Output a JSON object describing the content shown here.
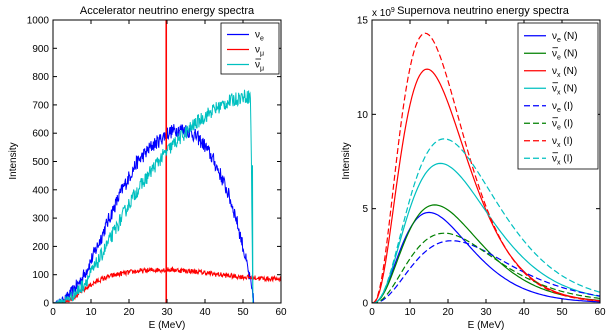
{
  "chart_data": [
    {
      "type": "line",
      "title": "Accelerator neutrino energy spectra",
      "xlabel": "E (MeV)",
      "ylabel": "Intensity",
      "xlim": [
        0,
        60
      ],
      "ylim": [
        0,
        1000
      ],
      "xticks": [
        0,
        10,
        20,
        30,
        40,
        50,
        60
      ],
      "yticks": [
        0,
        100,
        200,
        300,
        400,
        500,
        600,
        700,
        800,
        900,
        1000
      ],
      "grid": false,
      "legend_position": "top-right",
      "series": [
        {
          "name": "ν_e",
          "legend_main": "ν",
          "legend_sub": "e",
          "legend_bar": false,
          "color": "#0000ff",
          "noise": 25,
          "cutoff": 52.8,
          "x": [
            0,
            2,
            4,
            6,
            8,
            10,
            12,
            14,
            16,
            18,
            20,
            22,
            24,
            26,
            28,
            30,
            32,
            34,
            36,
            38,
            40,
            42,
            44,
            46,
            48,
            50,
            52,
            52.8
          ],
          "y": [
            0,
            8,
            25,
            55,
            95,
            150,
            210,
            275,
            335,
            395,
            445,
            495,
            525,
            555,
            575,
            600,
            610,
            615,
            605,
            585,
            555,
            510,
            455,
            390,
            310,
            200,
            70,
            0
          ]
        },
        {
          "name": "ν_μ",
          "legend_main": "ν",
          "legend_sub": "μ",
          "legend_bar": false,
          "color": "#ff0000",
          "noise": 9,
          "spike": {
            "x": 29.8,
            "y": 1000
          },
          "x": [
            0,
            2,
            4,
            6,
            8,
            10,
            12,
            14,
            16,
            18,
            20,
            22,
            24,
            26,
            28,
            30,
            32,
            34,
            36,
            38,
            40,
            42,
            44,
            46,
            48,
            50,
            52,
            54,
            56,
            58,
            60
          ],
          "y": [
            0,
            3,
            10,
            25,
            45,
            65,
            80,
            90,
            98,
            104,
            108,
            112,
            114,
            116,
            117,
            118,
            117,
            115,
            113,
            110,
            107,
            103,
            100,
            97,
            94,
            92,
            90,
            88,
            86,
            85,
            84
          ]
        },
        {
          "name": "ν̄_μ",
          "legend_main": "ν",
          "legend_sub": "μ",
          "legend_bar": true,
          "color": "#00c0c0",
          "noise": 25,
          "cutoff": 52.6,
          "x": [
            0,
            2,
            4,
            6,
            8,
            10,
            12,
            14,
            16,
            18,
            20,
            22,
            24,
            26,
            28,
            30,
            32,
            34,
            36,
            38,
            40,
            42,
            44,
            46,
            48,
            50,
            52,
            52.6
          ],
          "y": [
            0,
            5,
            15,
            35,
            65,
            105,
            150,
            200,
            250,
            300,
            350,
            395,
            430,
            470,
            505,
            535,
            565,
            590,
            615,
            640,
            660,
            680,
            695,
            710,
            720,
            730,
            730,
            0
          ]
        }
      ]
    },
    {
      "type": "line",
      "title": "Supernova neutrino energy spectra",
      "xlabel": "E (MeV)",
      "ylabel": "Intensity",
      "scale_label": "x 10",
      "scale_exp": "9",
      "xlim": [
        0,
        60
      ],
      "ylim": [
        0,
        15
      ],
      "xticks": [
        0,
        10,
        20,
        30,
        40,
        50,
        60
      ],
      "yticks": [
        0,
        5,
        10,
        15
      ],
      "grid": false,
      "legend_position": "top-right",
      "series": [
        {
          "name": "ν_e (N)",
          "legend_main": "ν",
          "legend_sub": "e",
          "legend_bar": false,
          "legend_tail": " (N)",
          "color": "#0000ff",
          "dash": false,
          "peak": 4.8,
          "at": 15
        },
        {
          "name": "ν̄_e (N)",
          "legend_main": "ν",
          "legend_sub": "e",
          "legend_bar": true,
          "legend_tail": " (N)",
          "color": "#008000",
          "dash": false,
          "peak": 5.2,
          "at": 16.5
        },
        {
          "name": "ν_x (N)",
          "legend_main": "ν",
          "legend_sub": "x",
          "legend_bar": false,
          "legend_tail": " (N)",
          "color": "#ff0000",
          "dash": false,
          "peak": 12.4,
          "at": 14.5
        },
        {
          "name": "ν̄_x (N)",
          "legend_main": "ν",
          "legend_sub": "x",
          "legend_bar": true,
          "legend_tail": " (N)",
          "color": "#00c0c0",
          "dash": false,
          "peak": 7.4,
          "at": 18
        },
        {
          "name": "ν_e (I)",
          "legend_main": "ν",
          "legend_sub": "e",
          "legend_bar": false,
          "legend_tail": " (I)",
          "color": "#0000ff",
          "dash": true,
          "peak": 3.3,
          "at": 21
        },
        {
          "name": "ν̄_e (I)",
          "legend_main": "ν",
          "legend_sub": "e",
          "legend_bar": true,
          "legend_tail": " (I)",
          "color": "#008000",
          "dash": true,
          "peak": 3.7,
          "at": 19
        },
        {
          "name": "ν_x (I)",
          "legend_main": "ν",
          "legend_sub": "x",
          "legend_bar": false,
          "legend_tail": " (I)",
          "color": "#ff0000",
          "dash": true,
          "peak": 14.3,
          "at": 14
        },
        {
          "name": "ν̄_x (I)",
          "legend_main": "ν",
          "legend_sub": "x",
          "legend_bar": true,
          "legend_tail": " (I)",
          "color": "#00c0c0",
          "dash": true,
          "peak": 8.7,
          "at": 19
        }
      ]
    }
  ]
}
